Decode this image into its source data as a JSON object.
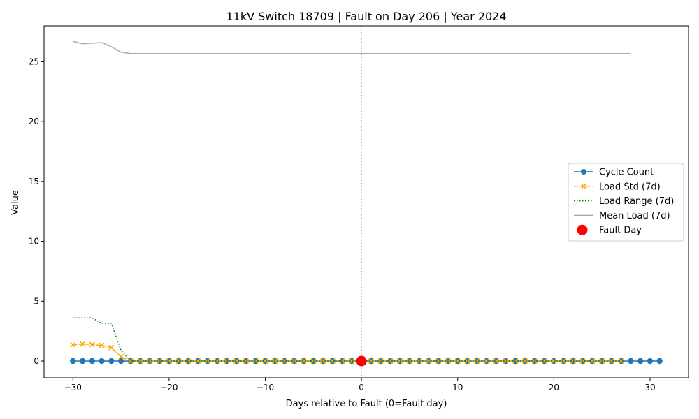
{
  "chart_data": {
    "type": "line",
    "title": "11kV Switch 18709 | Fault on Day 206 | Year 2024",
    "xlabel": "Days relative to Fault (0=Fault day)",
    "ylabel": "Value",
    "xlim": [
      -33,
      34
    ],
    "ylim": [
      -1.4,
      28
    ],
    "xticks": [
      -30,
      -20,
      -10,
      0,
      10,
      20,
      30
    ],
    "xtick_labels": [
      "−30",
      "−20",
      "−10",
      "0",
      "10",
      "20",
      "30"
    ],
    "yticks": [
      0,
      5,
      10,
      15,
      20,
      25
    ],
    "ytick_labels": [
      "0",
      "5",
      "10",
      "15",
      "20",
      "25"
    ],
    "grid": false,
    "legend_position": "center-right",
    "fault_line_x": 0,
    "series": [
      {
        "name": "Cycle Count",
        "style": "line-circle",
        "color": "#1f77b4",
        "x": [
          -30,
          -29,
          -28,
          -27,
          -26,
          -25,
          -24,
          -23,
          -22,
          -21,
          -20,
          -19,
          -18,
          -17,
          -16,
          -15,
          -14,
          -13,
          -12,
          -11,
          -10,
          -9,
          -8,
          -7,
          -6,
          -5,
          -4,
          -3,
          -2,
          -1,
          0,
          1,
          2,
          3,
          4,
          5,
          6,
          7,
          8,
          9,
          10,
          11,
          12,
          13,
          14,
          15,
          16,
          17,
          18,
          19,
          20,
          21,
          22,
          23,
          24,
          25,
          26,
          27,
          28,
          29,
          30,
          31
        ],
        "y": [
          0,
          0,
          0,
          0,
          0,
          0,
          0,
          0,
          0,
          0,
          0,
          0,
          0,
          0,
          0,
          0,
          0,
          0,
          0,
          0,
          0,
          0,
          0,
          0,
          0,
          0,
          0,
          0,
          0,
          0,
          0,
          0,
          0,
          0,
          0,
          0,
          0,
          0,
          0,
          0,
          0,
          0,
          0,
          0,
          0,
          0,
          0,
          0,
          0,
          0,
          0,
          0,
          0,
          0,
          0,
          0,
          0,
          0,
          0,
          0,
          0,
          0
        ]
      },
      {
        "name": "Load Std (7d)",
        "style": "dashed-x",
        "color": "#ffa500",
        "x": [
          -30,
          -29,
          -28,
          -27,
          -26,
          -25,
          -24,
          -23,
          -22,
          -21,
          -20,
          -19,
          -18,
          -17,
          -16,
          -15,
          -14,
          -13,
          -12,
          -11,
          -10,
          -9,
          -8,
          -7,
          -6,
          -5,
          -4,
          -3,
          -2,
          -1,
          0,
          1,
          2,
          3,
          4,
          5,
          6,
          7,
          8,
          9,
          10,
          11,
          12,
          13,
          14,
          15,
          16,
          17,
          18,
          19,
          20,
          21,
          22,
          23,
          24,
          25,
          26,
          27
        ],
        "y": [
          1.35,
          1.42,
          1.38,
          1.3,
          1.12,
          0.35,
          0,
          0,
          0,
          0,
          0,
          0,
          0,
          0,
          0,
          0,
          0,
          0,
          0,
          0,
          0,
          0,
          0,
          0,
          0,
          0,
          0,
          0,
          0,
          0,
          0,
          0,
          0,
          0,
          0,
          0,
          0,
          0,
          0,
          0,
          0,
          0,
          0,
          0,
          0,
          0,
          0,
          0,
          0,
          0,
          0,
          0,
          0,
          0,
          0,
          0,
          0,
          0
        ]
      },
      {
        "name": "Load Range (7d)",
        "style": "dotted",
        "color": "#008000",
        "x": [
          -30,
          -29,
          -28,
          -27,
          -26,
          -25,
          -24,
          -23,
          -22,
          -21,
          -20,
          -19,
          -18,
          -17,
          -16,
          -15,
          -14,
          -13,
          -12,
          -11,
          -10,
          -9,
          -8,
          -7,
          -6,
          -5,
          -4,
          -3,
          -2,
          -1,
          0,
          1,
          2,
          3,
          4,
          5,
          6,
          7,
          8,
          9,
          10,
          11,
          12,
          13,
          14,
          15,
          16,
          17,
          18,
          19,
          20,
          21,
          22,
          23,
          24,
          25,
          26,
          27
        ],
        "y": [
          3.6,
          3.6,
          3.6,
          3.15,
          3.15,
          0.9,
          0,
          0,
          0,
          0,
          0,
          0,
          0,
          0,
          0,
          0,
          0,
          0,
          0,
          0,
          0,
          0,
          0,
          0,
          0,
          0,
          0,
          0,
          0,
          0,
          0,
          0,
          0,
          0,
          0,
          0,
          0,
          0,
          0,
          0,
          0,
          0,
          0,
          0,
          0,
          0,
          0,
          0,
          0,
          0,
          0,
          0,
          0,
          0,
          0,
          0,
          0,
          0
        ]
      },
      {
        "name": "Mean Load (7d)",
        "style": "solid",
        "color": "#aaaaaa",
        "x": [
          -30,
          -29,
          -28,
          -27,
          -26,
          -25,
          -24,
          -23,
          -22,
          -21,
          -20,
          -19,
          -18,
          -17,
          -16,
          -15,
          -14,
          -13,
          -12,
          -11,
          -10,
          -9,
          -8,
          -7,
          -6,
          -5,
          -4,
          -3,
          -2,
          -1,
          0,
          1,
          2,
          3,
          4,
          5,
          6,
          7,
          8,
          9,
          10,
          11,
          12,
          13,
          14,
          15,
          16,
          17,
          18,
          19,
          20,
          21,
          22,
          23,
          24,
          25,
          26,
          27,
          28
        ],
        "y": [
          26.7,
          26.5,
          26.55,
          26.6,
          26.25,
          25.8,
          25.68,
          25.68,
          25.68,
          25.68,
          25.68,
          25.68,
          25.68,
          25.68,
          25.68,
          25.68,
          25.68,
          25.68,
          25.68,
          25.68,
          25.68,
          25.68,
          25.68,
          25.68,
          25.68,
          25.68,
          25.68,
          25.68,
          25.68,
          25.68,
          25.68,
          25.68,
          25.68,
          25.68,
          25.68,
          25.68,
          25.68,
          25.68,
          25.68,
          25.68,
          25.68,
          25.68,
          25.68,
          25.68,
          25.68,
          25.68,
          25.68,
          25.68,
          25.68,
          25.68,
          25.68,
          25.68,
          25.68,
          25.68,
          25.68,
          25.68,
          25.68,
          25.68,
          25.68
        ]
      },
      {
        "name": "Fault Day",
        "style": "marker-big",
        "color": "#ff0000",
        "x": [
          0
        ],
        "y": [
          0
        ]
      }
    ]
  }
}
